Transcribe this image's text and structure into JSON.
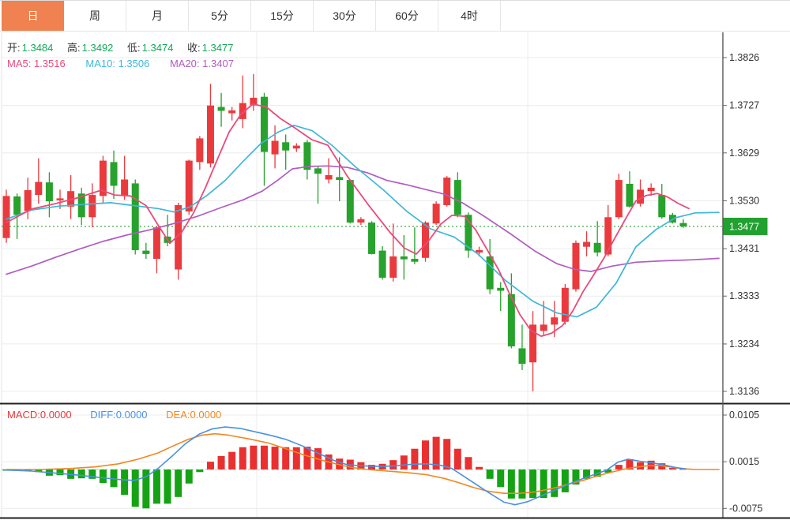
{
  "toolbar": {
    "tabs": [
      {
        "label": "日",
        "active": true
      },
      {
        "label": "周",
        "active": false
      },
      {
        "label": "月",
        "active": false
      },
      {
        "label": "5分",
        "active": false
      },
      {
        "label": "15分",
        "active": false
      },
      {
        "label": "30分",
        "active": false
      },
      {
        "label": "60分",
        "active": false
      },
      {
        "label": "4时",
        "active": false
      }
    ]
  },
  "legend": {
    "open_label": "开:",
    "open": "1.3484",
    "high_label": "高:",
    "high": "1.3492",
    "low_label": "低:",
    "low": "1.3474",
    "close_label": "收:",
    "close": "1.3477",
    "ma5_label": "MA5:",
    "ma5": "1.3516",
    "ma10_label": "MA10:",
    "ma10": "1.3506",
    "ma20_label": "MA20:",
    "ma20": "1.3407"
  },
  "macd_legend": {
    "macd": "MACD:0.0000",
    "diff": "DIFF:0.0000",
    "dea": "DEA:0.0000"
  },
  "colors": {
    "up": "#e93b3e",
    "down": "#27a22c",
    "hist_up": "#e93030",
    "hist_down": "#15a315",
    "ma5": "#e84b79",
    "ma10": "#3fb6d8",
    "ma20": "#b05cc0",
    "diff": "#4a90e2",
    "dea": "#f0871f",
    "value_green": "#13a657",
    "current_price": "#21a12f",
    "grid": "#ececec",
    "axis_text": "#333333",
    "tab_active": "#ef8250"
  },
  "chart_data": {
    "type": "candlestick",
    "title": "",
    "price_axis_labels": [
      1.3826,
      1.3727,
      1.3629,
      1.353,
      1.3431,
      1.3333,
      1.3234,
      1.3136
    ],
    "current_price": 1.3477,
    "candles_ohlc": [
      [
        1.3453,
        1.3553,
        1.3443,
        1.354
      ],
      [
        1.3539,
        1.3545,
        1.3451,
        1.3501
      ],
      [
        1.3509,
        1.3578,
        1.3492,
        1.3552
      ],
      [
        1.3542,
        1.3618,
        1.3524,
        1.3569
      ],
      [
        1.3568,
        1.3589,
        1.3496,
        1.3529
      ],
      [
        1.3531,
        1.3553,
        1.3513,
        1.3535
      ],
      [
        1.3518,
        1.3583,
        1.3492,
        1.355
      ],
      [
        1.3545,
        1.3557,
        1.348,
        1.3496
      ],
      [
        1.3496,
        1.3566,
        1.3475,
        1.3542
      ],
      [
        1.354,
        1.3623,
        1.3524,
        1.3613
      ],
      [
        1.361,
        1.3634,
        1.3534,
        1.3561
      ],
      [
        1.354,
        1.3623,
        1.3532,
        1.3574
      ],
      [
        1.3566,
        1.3574,
        1.3419,
        1.3428
      ],
      [
        1.3427,
        1.3443,
        1.341,
        1.342
      ],
      [
        1.341,
        1.3477,
        1.338,
        1.3475
      ],
      [
        1.3456,
        1.3501,
        1.3436,
        1.3443
      ],
      [
        1.3388,
        1.3526,
        1.3367,
        1.3521
      ],
      [
        1.3508,
        1.3615,
        1.3501,
        1.3613
      ],
      [
        1.361,
        1.3664,
        1.3594,
        1.3659
      ],
      [
        1.3607,
        1.3772,
        1.3599,
        1.3727
      ],
      [
        1.3724,
        1.3753,
        1.3683,
        1.3716
      ],
      [
        1.3711,
        1.3724,
        1.3696,
        1.3717
      ],
      [
        1.3699,
        1.3789,
        1.368,
        1.3732
      ],
      [
        1.3727,
        1.3792,
        1.3716,
        1.3743
      ],
      [
        1.3745,
        1.3753,
        1.3561,
        1.3631
      ],
      [
        1.3626,
        1.3686,
        1.3597,
        1.3654
      ],
      [
        1.3651,
        1.3667,
        1.3594,
        1.3634
      ],
      [
        1.3638,
        1.3649,
        1.3631,
        1.3644
      ],
      [
        1.3651,
        1.3656,
        1.3574,
        1.3594
      ],
      [
        1.3597,
        1.3602,
        1.3524,
        1.3586
      ],
      [
        1.3574,
        1.3618,
        1.3566,
        1.3583
      ],
      [
        1.3579,
        1.362,
        1.3529,
        1.3573
      ],
      [
        1.3573,
        1.3574,
        1.3483,
        1.3485
      ],
      [
        1.3485,
        1.3496,
        1.348,
        1.3492
      ],
      [
        1.3485,
        1.3488,
        1.3419,
        1.342
      ],
      [
        1.3427,
        1.3436,
        1.3367,
        1.3371
      ],
      [
        1.3371,
        1.3483,
        1.3363,
        1.3415
      ],
      [
        1.3415,
        1.3459,
        1.3367,
        1.3409
      ],
      [
        1.341,
        1.3475,
        1.3399,
        1.3404
      ],
      [
        1.3412,
        1.3488,
        1.3404,
        1.3485
      ],
      [
        1.3483,
        1.3529,
        1.348,
        1.3524
      ],
      [
        1.3521,
        1.3581,
        1.3518,
        1.3578
      ],
      [
        1.3573,
        1.3589,
        1.3496,
        1.3501
      ],
      [
        1.3501,
        1.3506,
        1.3412,
        1.3427
      ],
      [
        1.3423,
        1.3435,
        1.3415,
        1.3428
      ],
      [
        1.3415,
        1.3451,
        1.3337,
        1.3347
      ],
      [
        1.335,
        1.3362,
        1.3302,
        1.3344
      ],
      [
        1.3337,
        1.338,
        1.3225,
        1.3229
      ],
      [
        1.3225,
        1.3274,
        1.318,
        1.3193
      ],
      [
        1.3196,
        1.3302,
        1.3136,
        1.3274
      ],
      [
        1.3261,
        1.3323,
        1.325,
        1.3274
      ],
      [
        1.3274,
        1.3323,
        1.3248,
        1.3289
      ],
      [
        1.328,
        1.3358,
        1.3274,
        1.335
      ],
      [
        1.3347,
        1.3448,
        1.3342,
        1.3443
      ],
      [
        1.3435,
        1.3467,
        1.3415,
        1.3445
      ],
      [
        1.3443,
        1.3488,
        1.3415,
        1.3423
      ],
      [
        1.3419,
        1.3521,
        1.3415,
        1.3496
      ],
      [
        1.3496,
        1.3586,
        1.3492,
        1.3573
      ],
      [
        1.3565,
        1.3591,
        1.3516,
        1.3518
      ],
      [
        1.3524,
        1.3574,
        1.3518,
        1.3553
      ],
      [
        1.355,
        1.3566,
        1.354,
        1.3557
      ],
      [
        1.3542,
        1.3565,
        1.3493,
        1.3496
      ],
      [
        1.3501,
        1.3505,
        1.3483,
        1.3485
      ],
      [
        1.3484,
        1.3492,
        1.3474,
        1.3477
      ]
    ],
    "ma5_points": [
      [
        8,
        1.3485
      ],
      [
        40,
        1.3513
      ],
      [
        70,
        1.3524
      ],
      [
        100,
        1.3537
      ],
      [
        128,
        1.3552
      ],
      [
        145,
        1.3542
      ],
      [
        165,
        1.354
      ],
      [
        185,
        1.352
      ],
      [
        200,
        1.348
      ],
      [
        215,
        1.3442
      ],
      [
        230,
        1.3465
      ],
      [
        245,
        1.3505
      ],
      [
        260,
        1.3557
      ],
      [
        275,
        1.3615
      ],
      [
        290,
        1.3672
      ],
      [
        305,
        1.3709
      ],
      [
        320,
        1.373
      ],
      [
        337,
        1.3724
      ],
      [
        355,
        1.37
      ],
      [
        372,
        1.3682
      ],
      [
        395,
        1.3656
      ],
      [
        415,
        1.3645
      ],
      [
        440,
        1.358
      ],
      [
        467,
        1.352
      ],
      [
        494,
        1.3464
      ],
      [
        512,
        1.3432
      ],
      [
        527,
        1.342
      ],
      [
        542,
        1.3446
      ],
      [
        558,
        1.3482
      ],
      [
        572,
        1.35
      ],
      [
        588,
        1.3498
      ],
      [
        602,
        1.347
      ],
      [
        617,
        1.3428
      ],
      [
        631,
        1.3388
      ],
      [
        645,
        1.3338
      ],
      [
        658,
        1.3295
      ],
      [
        672,
        1.3262
      ],
      [
        685,
        1.325
      ],
      [
        698,
        1.3256
      ],
      [
        712,
        1.3272
      ],
      [
        725,
        1.3302
      ],
      [
        738,
        1.3342
      ],
      [
        752,
        1.3378
      ],
      [
        765,
        1.3413
      ],
      [
        778,
        1.3452
      ],
      [
        792,
        1.3493
      ],
      [
        805,
        1.353
      ],
      [
        818,
        1.3541
      ],
      [
        832,
        1.3545
      ],
      [
        845,
        1.3538
      ],
      [
        858,
        1.3525
      ],
      [
        872,
        1.3514
      ]
    ],
    "ma10_points": [
      [
        8,
        1.3492
      ],
      [
        40,
        1.3511
      ],
      [
        75,
        1.3519
      ],
      [
        110,
        1.3523
      ],
      [
        140,
        1.3526
      ],
      [
        170,
        1.352
      ],
      [
        200,
        1.3514
      ],
      [
        220,
        1.3507
      ],
      [
        240,
        1.3517
      ],
      [
        262,
        1.3541
      ],
      [
        285,
        1.3572
      ],
      [
        308,
        1.3612
      ],
      [
        330,
        1.3648
      ],
      [
        352,
        1.3672
      ],
      [
        372,
        1.3686
      ],
      [
        395,
        1.3675
      ],
      [
        420,
        1.3645
      ],
      [
        450,
        1.36
      ],
      [
        485,
        1.3553
      ],
      [
        515,
        1.3508
      ],
      [
        545,
        1.3472
      ],
      [
        575,
        1.3455
      ],
      [
        605,
        1.342
      ],
      [
        640,
        1.3365
      ],
      [
        675,
        1.3322
      ],
      [
        705,
        1.3298
      ],
      [
        730,
        1.329
      ],
      [
        755,
        1.331
      ],
      [
        780,
        1.336
      ],
      [
        805,
        1.3435
      ],
      [
        830,
        1.347
      ],
      [
        855,
        1.3495
      ],
      [
        880,
        1.3505
      ],
      [
        910,
        1.3506
      ]
    ],
    "ma20_points": [
      [
        8,
        1.3378
      ],
      [
        40,
        1.3395
      ],
      [
        70,
        1.3413
      ],
      [
        100,
        1.343
      ],
      [
        130,
        1.3446
      ],
      [
        160,
        1.3459
      ],
      [
        190,
        1.347
      ],
      [
        220,
        1.3483
      ],
      [
        250,
        1.3498
      ],
      [
        280,
        1.3516
      ],
      [
        308,
        1.3532
      ],
      [
        332,
        1.355
      ],
      [
        352,
        1.3573
      ],
      [
        370,
        1.3596
      ],
      [
        392,
        1.3601
      ],
      [
        415,
        1.3602
      ],
      [
        440,
        1.3599
      ],
      [
        465,
        1.3588
      ],
      [
        490,
        1.3572
      ],
      [
        515,
        1.3563
      ],
      [
        540,
        1.3553
      ],
      [
        562,
        1.3544
      ],
      [
        585,
        1.3526
      ],
      [
        612,
        1.3499
      ],
      [
        645,
        1.3463
      ],
      [
        678,
        1.3425
      ],
      [
        705,
        1.34
      ],
      [
        728,
        1.3388
      ],
      [
        748,
        1.3384
      ],
      [
        775,
        1.3395
      ],
      [
        805,
        1.3403
      ],
      [
        840,
        1.3406
      ],
      [
        875,
        1.3408
      ],
      [
        910,
        1.3411
      ]
    ],
    "macd": {
      "axis_labels": [
        "0.0105",
        "0.0015",
        "-0.0075"
      ],
      "axis_values": [
        0.0105,
        0.0015,
        -0.0075
      ],
      "histogram": [
        -0.0001,
        -0.0002,
        -0.0003,
        -0.0005,
        -0.0012,
        -0.0011,
        -0.0018,
        -0.0017,
        -0.0018,
        -0.0026,
        -0.0034,
        -0.0049,
        -0.0072,
        -0.0075,
        -0.0066,
        -0.0066,
        -0.0053,
        -0.0027,
        -0.0005,
        0.0015,
        0.0026,
        0.0034,
        0.0043,
        0.0046,
        0.0046,
        0.0044,
        0.0043,
        0.0043,
        0.0044,
        0.0041,
        0.0029,
        0.0021,
        0.0019,
        0.0014,
        0.0009,
        0.0011,
        0.0018,
        0.0027,
        0.004,
        0.0056,
        0.0063,
        0.0059,
        0.004,
        0.0024,
        0.0005,
        -0.0018,
        -0.0034,
        -0.0056,
        -0.0056,
        -0.0055,
        -0.0055,
        -0.0053,
        -0.0044,
        -0.0029,
        -0.0018,
        -0.0014,
        -0.0006,
        0.0009,
        0.002,
        0.0014,
        0.0017,
        0.0012,
        0.0003,
        0.0002
      ],
      "diff_points": [
        [
          8,
          -0.0001
        ],
        [
          40,
          -0.0003
        ],
        [
          70,
          -0.0007
        ],
        [
          100,
          -0.0011
        ],
        [
          130,
          -0.0016
        ],
        [
          155,
          -0.002
        ],
        [
          170,
          -0.0021
        ],
        [
          185,
          -0.0014
        ],
        [
          200,
          0.0002
        ],
        [
          218,
          0.0026
        ],
        [
          235,
          0.005
        ],
        [
          252,
          0.0068
        ],
        [
          268,
          0.0078
        ],
        [
          285,
          0.0082
        ],
        [
          305,
          0.0079
        ],
        [
          325,
          0.0072
        ],
        [
          345,
          0.0065
        ],
        [
          362,
          0.0058
        ],
        [
          382,
          0.0046
        ],
        [
          402,
          0.0032
        ],
        [
          422,
          0.0018
        ],
        [
          440,
          0.0009
        ],
        [
          460,
          0.0007
        ],
        [
          480,
          0.0006
        ],
        [
          500,
          0.0007
        ],
        [
          520,
          0.001
        ],
        [
          540,
          0.0011
        ],
        [
          558,
          0.0008
        ],
        [
          572,
          0.0002
        ],
        [
          588,
          -0.0014
        ],
        [
          602,
          -0.0028
        ],
        [
          618,
          -0.0044
        ],
        [
          638,
          -0.0063
        ],
        [
          652,
          -0.0068
        ],
        [
          668,
          -0.0062
        ],
        [
          688,
          -0.0049
        ],
        [
          708,
          -0.0036
        ],
        [
          728,
          -0.0023
        ],
        [
          748,
          -0.0012
        ],
        [
          768,
          -0.0001
        ],
        [
          782,
          0.0014
        ],
        [
          795,
          0.002
        ],
        [
          810,
          0.0016
        ],
        [
          825,
          0.0013
        ],
        [
          840,
          0.0009
        ],
        [
          855,
          0.0004
        ],
        [
          868,
          0.0001
        ]
      ],
      "dea_points": [
        [
          8,
          0.0
        ],
        [
          50,
          0.0
        ],
        [
          90,
          0.0002
        ],
        [
          120,
          0.0005
        ],
        [
          150,
          0.0011
        ],
        [
          175,
          0.002
        ],
        [
          200,
          0.0032
        ],
        [
          220,
          0.0046
        ],
        [
          238,
          0.0058
        ],
        [
          255,
          0.0066
        ],
        [
          272,
          0.0069
        ],
        [
          290,
          0.0066
        ],
        [
          315,
          0.0059
        ],
        [
          340,
          0.0051
        ],
        [
          362,
          0.004
        ],
        [
          385,
          0.0028
        ],
        [
          405,
          0.0019
        ],
        [
          425,
          0.0011
        ],
        [
          445,
          0.0004
        ],
        [
          465,
          0.0
        ],
        [
          490,
          -0.0003
        ],
        [
          515,
          -0.0006
        ],
        [
          540,
          -0.001
        ],
        [
          562,
          -0.0017
        ],
        [
          582,
          -0.0026
        ],
        [
          600,
          -0.0035
        ],
        [
          618,
          -0.0042
        ],
        [
          638,
          -0.0046
        ],
        [
          658,
          -0.0046
        ],
        [
          678,
          -0.0043
        ],
        [
          698,
          -0.0037
        ],
        [
          718,
          -0.0029
        ],
        [
          738,
          -0.0021
        ],
        [
          755,
          -0.0013
        ],
        [
          772,
          -0.0006
        ],
        [
          788,
          0.0
        ],
        [
          802,
          0.0004
        ],
        [
          818,
          0.0007
        ],
        [
          832,
          0.0008
        ],
        [
          848,
          0.0005
        ],
        [
          862,
          0.0002
        ],
        [
          880,
          0.0
        ],
        [
          910,
          0.0
        ]
      ]
    }
  }
}
